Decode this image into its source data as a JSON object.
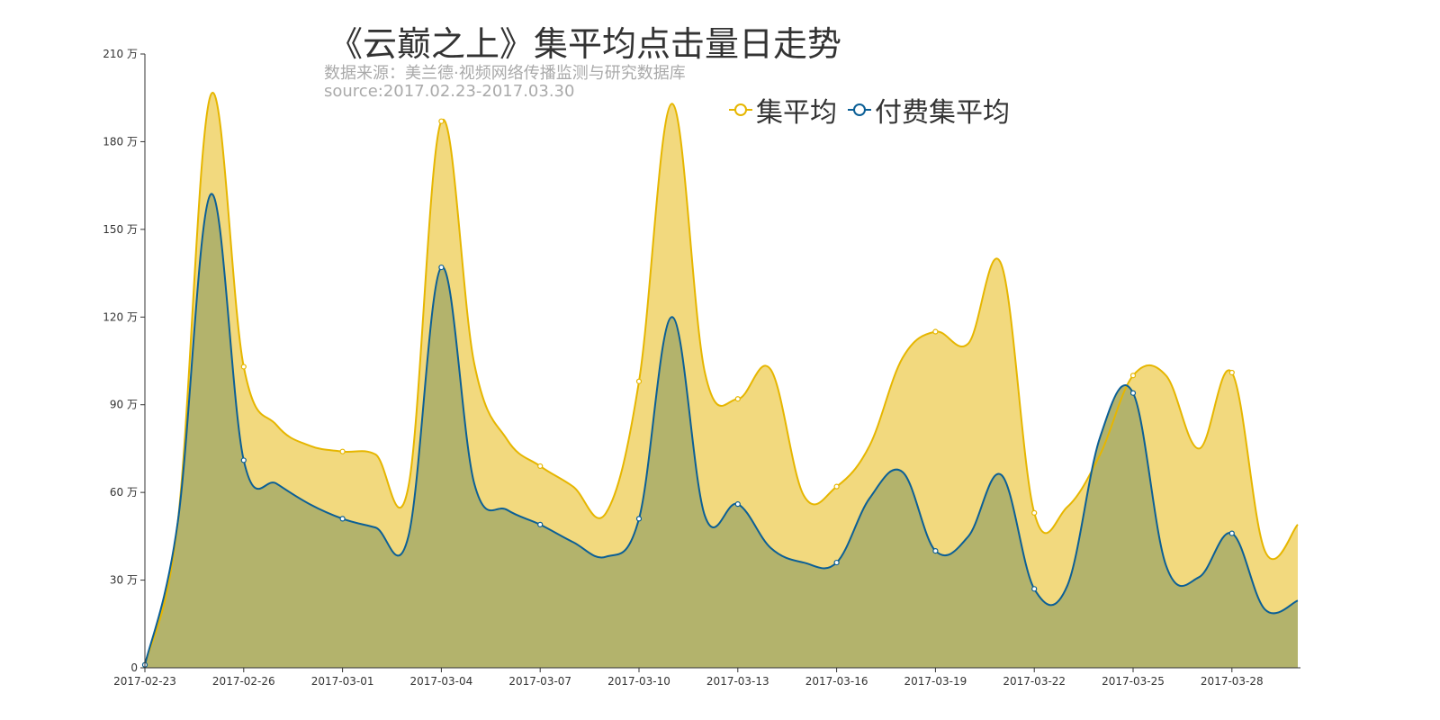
{
  "chart_data": {
    "type": "area",
    "title": "《云巅之上》集平均点击量日走势",
    "subtitle_lines": [
      "数据来源：美兰德·视频网络传播监测与研究数据库",
      "source:2017.02.23-2017.03.30"
    ],
    "ylim": [
      0,
      210
    ],
    "y_ticks": [
      0,
      30,
      60,
      90,
      120,
      150,
      180,
      210
    ],
    "y_tick_labels": [
      "0",
      "30 万",
      "60 万",
      "90 万",
      "120 万",
      "150 万",
      "180 万",
      "210 万"
    ],
    "x_tick_labels": [
      "2017-02-23",
      "2017-02-26",
      "2017-03-01",
      "2017-03-04",
      "2017-03-07",
      "2017-03-10",
      "2017-03-13",
      "2017-03-16",
      "2017-03-19",
      "2017-03-22",
      "2017-03-25",
      "2017-03-28"
    ],
    "x": [
      "2017-02-23",
      "2017-02-24",
      "2017-02-25",
      "2017-02-26",
      "2017-02-27",
      "2017-02-28",
      "2017-03-01",
      "2017-03-02",
      "2017-03-03",
      "2017-03-04",
      "2017-03-05",
      "2017-03-06",
      "2017-03-07",
      "2017-03-08",
      "2017-03-09",
      "2017-03-10",
      "2017-03-11",
      "2017-03-12",
      "2017-03-13",
      "2017-03-14",
      "2017-03-15",
      "2017-03-16",
      "2017-03-17",
      "2017-03-18",
      "2017-03-19",
      "2017-03-20",
      "2017-03-21",
      "2017-03-22",
      "2017-03-23",
      "2017-03-24",
      "2017-03-25",
      "2017-03-26",
      "2017-03-27",
      "2017-03-28",
      "2017-03-29",
      "2017-03-30"
    ],
    "series": [
      {
        "name": "集平均",
        "color": "#e6b600",
        "fill": "#f2d97e",
        "values": [
          1,
          50,
          196,
          103,
          83,
          76,
          74,
          73,
          62,
          187,
          104,
          78,
          69,
          62,
          53,
          98,
          193,
          101,
          92,
          102,
          59,
          62,
          76,
          106,
          115,
          111,
          138,
          53,
          55,
          73,
          100,
          100,
          75,
          101,
          40,
          49
        ]
      },
      {
        "name": "付费集平均",
        "color": "#0b5f96",
        "fill": "#b3b36c",
        "values": [
          1,
          50,
          162,
          71,
          63,
          56,
          51,
          48,
          45,
          137,
          63,
          54,
          49,
          43,
          38,
          51,
          120,
          52,
          56,
          41,
          36,
          36,
          58,
          67,
          40,
          45,
          66,
          27,
          28,
          79,
          94,
          35,
          31,
          46,
          20,
          23
        ]
      }
    ],
    "grid": false,
    "legend_position": "top-center"
  }
}
